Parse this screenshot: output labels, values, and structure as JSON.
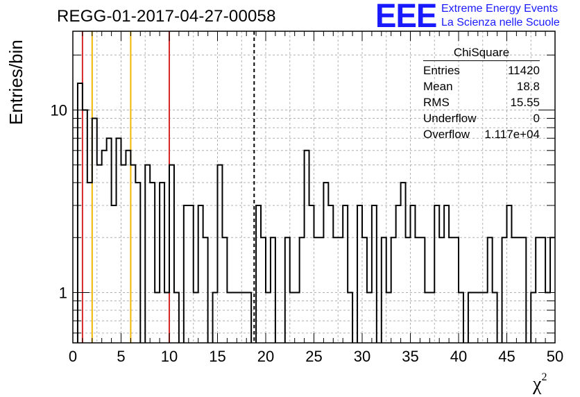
{
  "title": "REGG-01-2017-04-27-00058",
  "logo": {
    "mark": "EEE",
    "line1": "Extreme Energy Events",
    "line2": "La Scienza nelle Scuole",
    "color": "#1a1aff"
  },
  "stats": {
    "header": "ChiSquare",
    "rows": [
      {
        "label": "Entries",
        "value": "11420"
      },
      {
        "label": "Mean",
        "value": "18.8"
      },
      {
        "label": "RMS",
        "value": "15.55"
      },
      {
        "label": "Underflow",
        "value": "0"
      },
      {
        "label": "Overflow",
        "value": "1.117e+04"
      }
    ]
  },
  "chart_data": {
    "type": "bar",
    "style": "step-histogram",
    "xlabel": "χ",
    "xlabel_sup": "2",
    "ylabel": "Entries/bin",
    "xlim": [
      0,
      50
    ],
    "ylim": [
      0.53,
      27
    ],
    "log_y": true,
    "grid": true,
    "bin_width": 0.5,
    "x_ticks": [
      "0",
      "5",
      "10",
      "15",
      "20",
      "25",
      "30",
      "35",
      "40",
      "45",
      "50"
    ],
    "y_ticks": [
      {
        "value": 1,
        "label": "1"
      },
      {
        "value": 10,
        "label": "10"
      }
    ],
    "values": [
      0,
      14,
      10,
      4,
      9,
      5,
      6,
      7,
      3,
      7,
      5,
      6,
      5,
      4,
      0,
      5,
      4,
      1,
      4,
      1,
      5,
      1,
      0,
      3,
      3,
      1,
      3,
      2,
      0,
      1,
      5,
      2,
      1,
      1,
      1,
      1,
      1,
      0,
      3,
      2,
      1,
      2,
      0,
      0,
      2,
      1,
      1,
      2,
      6,
      3,
      2,
      2,
      4,
      3,
      2,
      2,
      3,
      1,
      0,
      3,
      2,
      1,
      3,
      0,
      2,
      1,
      2,
      3,
      4,
      2,
      3,
      2,
      2,
      1,
      1,
      3,
      2,
      3,
      2,
      2,
      1,
      0,
      1,
      1,
      1,
      1,
      2,
      1,
      0,
      2,
      3,
      2,
      2,
      2,
      0,
      1,
      2,
      2,
      1,
      2
    ],
    "vertical_lines": [
      {
        "x": 1,
        "color": "#d62728"
      },
      {
        "x": 2,
        "color": "#f2b705"
      },
      {
        "x": 6,
        "color": "#f2b705"
      },
      {
        "x": 10,
        "color": "#d62728"
      },
      {
        "x": 18.8,
        "color": "#000000",
        "dashed": true
      }
    ]
  }
}
